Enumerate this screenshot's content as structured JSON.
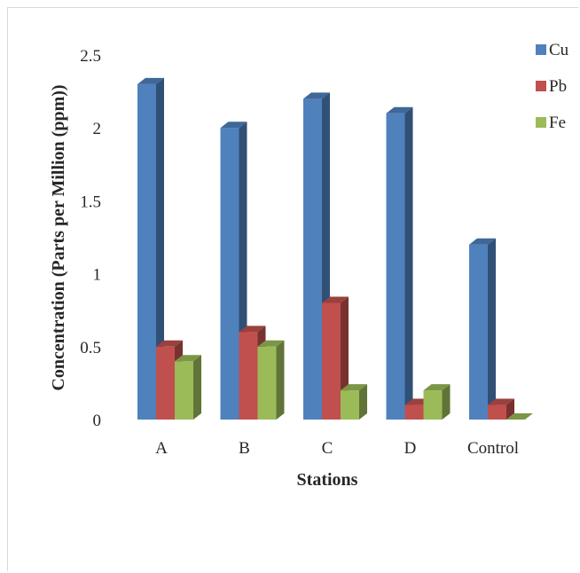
{
  "chart_data": {
    "type": "bar",
    "title": "",
    "xlabel": "Stations",
    "ylabel": "Concentration (Parts per Million (ppm))",
    "categories": [
      "A",
      "B",
      "C",
      "D",
      "Control"
    ],
    "series": [
      {
        "name": "Cu",
        "color": "#4f81bd",
        "values": [
          2.3,
          2.0,
          2.2,
          2.1,
          1.2
        ]
      },
      {
        "name": "Pb",
        "color": "#c0504d",
        "values": [
          0.5,
          0.6,
          0.8,
          0.1,
          0.1
        ]
      },
      {
        "name": "Fe",
        "color": "#9bbb59",
        "values": [
          0.4,
          0.5,
          0.2,
          0.2,
          0.0
        ]
      }
    ],
    "ylim": [
      0,
      2.5
    ],
    "yticks": [
      "0",
      "0.5",
      "1",
      "1.5",
      "2",
      "2.5"
    ],
    "grid": false,
    "legend": "top-right",
    "style": "3d-clustered-column"
  }
}
